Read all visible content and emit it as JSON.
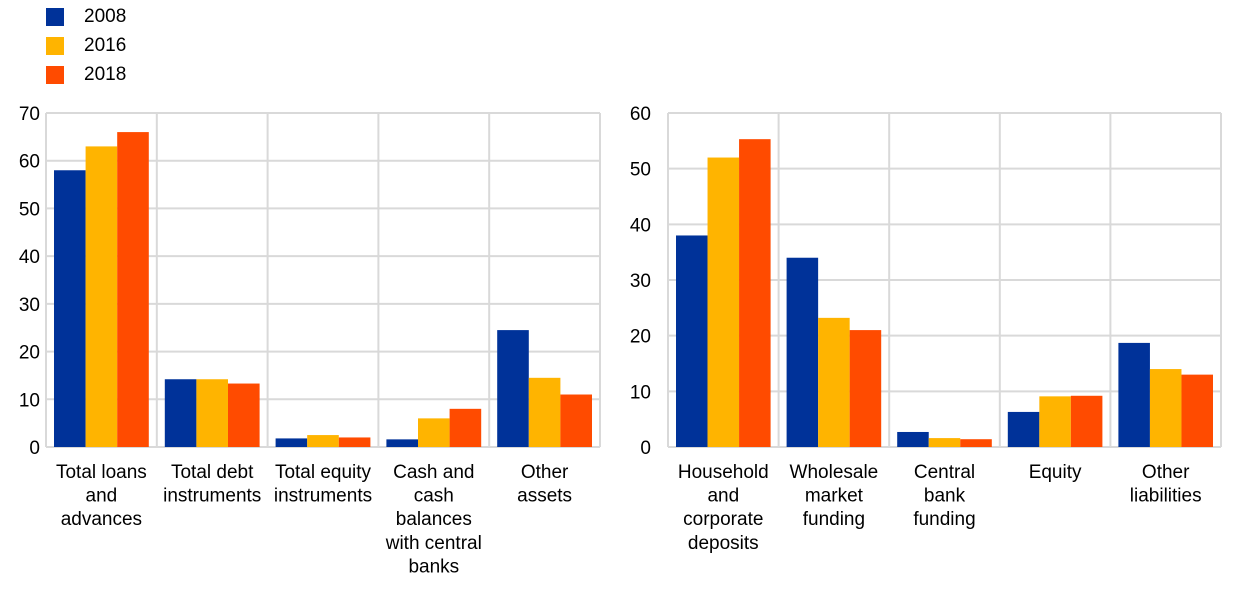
{
  "colors": {
    "2008": "#003299",
    "2016": "#ffb400",
    "2018": "#ff4b00",
    "grid": "#d9d9d9"
  },
  "legend": [
    {
      "label": "2008",
      "color": "#003299"
    },
    {
      "label": "2016",
      "color": "#ffb400"
    },
    {
      "label": "2018",
      "color": "#ff4b00"
    }
  ],
  "chart_data": [
    {
      "type": "bar",
      "title": "",
      "xlabel": "",
      "ylabel": "",
      "ylim": [
        0,
        70
      ],
      "yticks": [
        "0",
        "10",
        "20",
        "30",
        "40",
        "50",
        "60",
        "70"
      ],
      "grid": true,
      "legend_position": "top-left",
      "categories": [
        [
          "Total loans",
          "and",
          "advances"
        ],
        [
          "Total debt",
          "instruments"
        ],
        [
          "Total equity",
          "instruments"
        ],
        [
          "Cash and",
          "cash",
          "balances",
          "with central",
          "banks"
        ],
        [
          "Other",
          "assets"
        ]
      ],
      "series": [
        {
          "name": "2008",
          "values": [
            58.0,
            14.2,
            1.8,
            1.6,
            24.5
          ]
        },
        {
          "name": "2016",
          "values": [
            63.0,
            14.2,
            2.5,
            6.0,
            14.5
          ]
        },
        {
          "name": "2018",
          "values": [
            66.0,
            13.3,
            2.0,
            8.0,
            11.0
          ]
        }
      ]
    },
    {
      "type": "bar",
      "title": "",
      "xlabel": "",
      "ylabel": "",
      "ylim": [
        0,
        60
      ],
      "yticks": [
        "0",
        "10",
        "20",
        "30",
        "40",
        "50",
        "60"
      ],
      "grid": true,
      "categories": [
        [
          "Household",
          "and",
          "corporate",
          "deposits"
        ],
        [
          "Wholesale",
          "market",
          "funding"
        ],
        [
          "Central",
          "bank",
          "funding"
        ],
        [
          "Equity"
        ],
        [
          "Other",
          "liabilities"
        ]
      ],
      "series": [
        {
          "name": "2008",
          "values": [
            38.0,
            34.0,
            2.7,
            6.3,
            18.7
          ]
        },
        {
          "name": "2016",
          "values": [
            52.0,
            23.2,
            1.6,
            9.1,
            14.0
          ]
        },
        {
          "name": "2018",
          "values": [
            55.3,
            21.0,
            1.4,
            9.2,
            13.0
          ]
        }
      ]
    }
  ]
}
